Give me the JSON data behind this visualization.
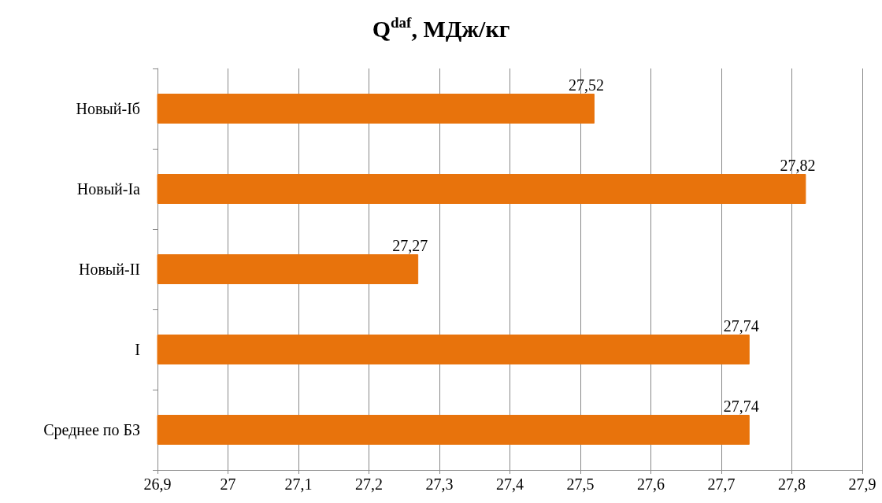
{
  "chart_data": {
    "type": "bar",
    "orientation": "horizontal",
    "title": "Q$^{daf}$, МДж/кг",
    "categories": [
      "Новый-Iб",
      "Новый-Iа",
      "Новый-II",
      "I",
      "Среднее по БЗ"
    ],
    "values": [
      27.52,
      27.82,
      27.27,
      27.74,
      27.74
    ],
    "value_labels": [
      "27,52",
      "27,82",
      "27,27",
      "27,74",
      "27,74"
    ],
    "color": "#e8730c",
    "xlim": [
      26.9,
      27.9
    ],
    "xticks": [
      {
        "value": 26.9,
        "label": "26,9"
      },
      27,
      {
        "value": 27.1,
        "label": "27,1"
      },
      {
        "value": 27.2,
        "label": "27,2"
      },
      {
        "value": 27.3,
        "label": "27,3"
      },
      {
        "value": 27.4,
        "label": "27,4"
      },
      {
        "value": 27.5,
        "label": "27,5"
      },
      {
        "value": 27.6,
        "label": "27,6"
      },
      {
        "value": 27.7,
        "label": "27,7"
      },
      {
        "value": 27.8,
        "label": "27,8"
      },
      {
        "value": 27.9,
        "label": "27,9"
      }
    ],
    "grid": "x"
  }
}
